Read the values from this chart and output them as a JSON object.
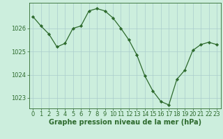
{
  "x": [
    0,
    1,
    2,
    3,
    4,
    5,
    6,
    7,
    8,
    9,
    10,
    11,
    12,
    13,
    14,
    15,
    16,
    17,
    18,
    19,
    20,
    21,
    22,
    23
  ],
  "y": [
    1026.5,
    1026.1,
    1025.75,
    1025.2,
    1025.35,
    1026.0,
    1026.1,
    1026.75,
    1026.85,
    1026.75,
    1026.45,
    1026.0,
    1025.5,
    1024.85,
    1023.95,
    1023.3,
    1022.85,
    1022.7,
    1023.8,
    1024.2,
    1025.05,
    1025.3,
    1025.4,
    1025.3
  ],
  "ylim": [
    1022.55,
    1027.1
  ],
  "yticks": [
    1023,
    1024,
    1025,
    1026
  ],
  "xticks": [
    0,
    1,
    2,
    3,
    4,
    5,
    6,
    7,
    8,
    9,
    10,
    11,
    12,
    13,
    14,
    15,
    16,
    17,
    18,
    19,
    20,
    21,
    22,
    23
  ],
  "line_color": "#2d6a2d",
  "marker_color": "#2d6a2d",
  "bg_color": "#cceedd",
  "grid_color": "#aacccc",
  "border_color": "#2d6a2d",
  "xlabel": "Graphe pression niveau de la mer (hPa)",
  "xlabel_color": "#2d6a2d",
  "tick_color": "#2d6a2d",
  "label_fontsize": 7.0,
  "tick_fontsize": 6.0
}
